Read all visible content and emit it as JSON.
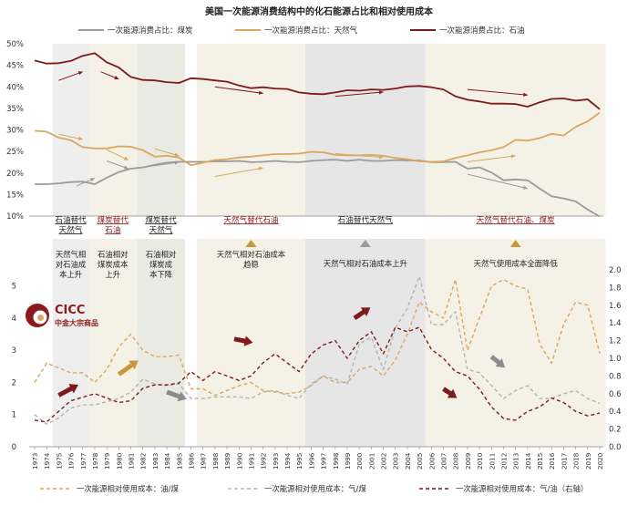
{
  "chart_data": [
    {
      "type": "line",
      "title": "美国一次能源消费结构中的化石能源占比和相对使用成本",
      "y_ticks": [
        "10%",
        "15%",
        "20%",
        "25%",
        "30%",
        "35%",
        "40%",
        "45%",
        "50%"
      ],
      "ylim": [
        10,
        50
      ],
      "legend_position": "top",
      "x": [
        1973,
        1974,
        1975,
        1976,
        1977,
        1978,
        1979,
        1980,
        1981,
        1982,
        1983,
        1984,
        1985,
        1986,
        1987,
        1988,
        1989,
        1990,
        1991,
        1992,
        1993,
        1994,
        1995,
        1996,
        1997,
        1998,
        1999,
        2000,
        2001,
        2002,
        2003,
        2004,
        2005,
        2006,
        2007,
        2008,
        2009,
        2010,
        2011,
        2012,
        2013,
        2014,
        2015,
        2016,
        2017,
        2018,
        2019,
        2020
      ],
      "series": [
        {
          "name": "一次能源消费占比：煤炭",
          "color": "#9a9a9a",
          "values": [
            17.4,
            17.4,
            17.6,
            17.9,
            18.0,
            17.4,
            18.9,
            20.2,
            21.0,
            21.3,
            21.9,
            22.4,
            22.6,
            22.6,
            22.6,
            22.7,
            22.7,
            22.8,
            22.5,
            22.6,
            22.8,
            22.6,
            22.5,
            22.8,
            23.0,
            23.1,
            22.8,
            23.1,
            22.8,
            22.8,
            23.0,
            22.9,
            22.9,
            22.5,
            22.5,
            22.6,
            21.0,
            21.3,
            20.1,
            18.3,
            18.5,
            18.3,
            16.4,
            14.6,
            14.1,
            13.4,
            11.5,
            9.9
          ]
        },
        {
          "name": "一次能源消费占比：天然气",
          "color": "#d9a75f",
          "values": [
            29.8,
            29.6,
            28.2,
            27.6,
            26.0,
            25.7,
            25.7,
            26.2,
            26.1,
            25.3,
            23.8,
            24.0,
            23.6,
            21.8,
            22.4,
            23.0,
            23.2,
            23.6,
            23.8,
            24.1,
            24.4,
            24.4,
            24.5,
            24.9,
            24.8,
            24.2,
            24.1,
            24.1,
            24.2,
            24.0,
            23.5,
            23.2,
            22.7,
            22.6,
            22.7,
            23.5,
            24.1,
            24.8,
            25.3,
            26.0,
            27.7,
            27.5,
            28.1,
            29.1,
            28.7,
            30.7,
            32.0,
            34.0
          ]
        },
        {
          "name": "一次能源消费占比：石油",
          "color": "#7d1a1c",
          "values": [
            46.1,
            45.4,
            45.5,
            46.0,
            47.2,
            47.8,
            45.7,
            44.5,
            42.3,
            41.6,
            41.5,
            41.1,
            40.9,
            42.0,
            41.8,
            41.5,
            41.2,
            40.3,
            39.7,
            39.9,
            39.6,
            39.5,
            38.7,
            38.4,
            38.3,
            38.7,
            39.2,
            39.1,
            39.4,
            39.3,
            39.6,
            40.1,
            40.2,
            39.9,
            39.4,
            37.8,
            37.0,
            36.6,
            36.1,
            36.1,
            36.0,
            35.4,
            36.4,
            37.2,
            37.3,
            36.8,
            37.1,
            34.8
          ]
        }
      ]
    },
    {
      "type": "line",
      "y_ticks_left": [
        "0",
        "1",
        "2",
        "3",
        "4",
        "5"
      ],
      "ylim_left": [
        0,
        5.5
      ],
      "y_ticks_right": [
        "0.0",
        "0.2",
        "0.4",
        "0.6",
        "0.8",
        "1.0",
        "1.2",
        "1.4",
        "1.6",
        "1.8",
        "2.0"
      ],
      "ylim_right": [
        0,
        2.0
      ],
      "legend_position": "bottom",
      "x": [
        1973,
        1974,
        1975,
        1976,
        1977,
        1978,
        1979,
        1980,
        1981,
        1982,
        1983,
        1984,
        1985,
        1986,
        1987,
        1988,
        1989,
        1990,
        1991,
        1992,
        1993,
        1994,
        1995,
        1996,
        1997,
        1998,
        1999,
        2000,
        2001,
        2002,
        2003,
        2004,
        2005,
        2006,
        2007,
        2008,
        2009,
        2010,
        2011,
        2012,
        2013,
        2014,
        2015,
        2016,
        2017,
        2018,
        2019,
        2020
      ],
      "series": [
        {
          "name": "一次能源相对使用成本：油/煤",
          "color": "#d9a75f",
          "dash": true,
          "axis": "left",
          "values": [
            2.0,
            2.6,
            2.45,
            2.3,
            2.3,
            2.0,
            2.4,
            3.1,
            3.5,
            3.0,
            2.8,
            2.8,
            2.85,
            1.8,
            1.8,
            1.6,
            1.75,
            1.9,
            2.0,
            1.75,
            1.7,
            1.65,
            1.7,
            1.9,
            2.2,
            2.0,
            2.0,
            2.4,
            2.5,
            2.2,
            2.7,
            3.5,
            4.5,
            4.2,
            4.0,
            5.2,
            3.0,
            4.0,
            5.0,
            5.2,
            5.0,
            4.9,
            3.2,
            2.6,
            3.8,
            4.5,
            4.4,
            2.9
          ]
        },
        {
          "name": "一次能源相对使用成本：气/煤",
          "color": "#b3b3b3",
          "dash": true,
          "axis": "left",
          "values": [
            1.0,
            0.7,
            0.9,
            1.2,
            1.3,
            1.3,
            1.4,
            1.5,
            1.7,
            2.1,
            1.95,
            1.9,
            1.95,
            1.5,
            1.5,
            1.55,
            1.55,
            1.55,
            1.5,
            1.7,
            1.75,
            1.6,
            1.5,
            1.95,
            2.2,
            2.1,
            1.95,
            3.2,
            3.4,
            2.4,
            3.7,
            4.3,
            5.3,
            3.8,
            3.8,
            4.2,
            2.4,
            2.3,
            1.9,
            1.5,
            1.75,
            1.9,
            1.5,
            1.5,
            1.65,
            1.75,
            1.5,
            1.35
          ]
        },
        {
          "name": "一次能源相对使用成本：气/油（右轴）",
          "color": "#7d1a1c",
          "dash": true,
          "axis": "right",
          "values": [
            0.3,
            0.28,
            0.4,
            0.52,
            0.56,
            0.6,
            0.55,
            0.5,
            0.52,
            0.66,
            0.7,
            0.7,
            0.72,
            0.85,
            0.75,
            0.85,
            0.8,
            0.75,
            0.8,
            0.95,
            1.05,
            0.95,
            0.85,
            1.05,
            1.15,
            1.2,
            1.0,
            1.2,
            1.3,
            1.05,
            1.35,
            1.3,
            1.35,
            1.1,
            1.0,
            0.85,
            0.8,
            0.65,
            0.45,
            0.32,
            0.3,
            0.4,
            0.45,
            0.55,
            0.5,
            0.4,
            0.35,
            0.38
          ]
        }
      ]
    }
  ],
  "bands": [
    {
      "from": 1975,
      "to": 1977,
      "color": "#eeeeee"
    },
    {
      "from": 1978,
      "to": 1981,
      "color": "#f4f1e6"
    },
    {
      "from": 1982,
      "to": 1985,
      "color": "#e9ebe3"
    },
    {
      "from": 1987,
      "to": 1995,
      "color": "#f4f1e6"
    },
    {
      "from": 1996,
      "to": 2005,
      "color": "#e6e6e6"
    },
    {
      "from": 2006,
      "to": 2020,
      "color": "#f4f1e6"
    }
  ],
  "phases": [
    {
      "label": "石油替代天然气",
      "center": 1976,
      "color": "#222222",
      "underline": true,
      "marker": "none"
    },
    {
      "label": "煤炭替代石油",
      "center": 1979.5,
      "color": "#8b1a1a",
      "underline": true,
      "marker": "none"
    },
    {
      "label": "煤炭替代天然气",
      "center": 1983.5,
      "color": "#222222",
      "underline": true,
      "marker": "none"
    },
    {
      "label": "天然气替代石油",
      "center": 1991,
      "color": "#8b1a1a",
      "underline": true,
      "marker": "gold"
    },
    {
      "label": "石油替代天然气",
      "center": 2000.5,
      "color": "#222222",
      "underline": true,
      "marker": "gray"
    },
    {
      "label": "天然气替代石油、煤炭",
      "center": 2013,
      "color": "#8b1a1a",
      "underline": true,
      "marker": "gold"
    }
  ],
  "phase_notes": [
    {
      "lines": [
        "天然气相",
        "对石油成",
        "本上升"
      ],
      "center": 1976
    },
    {
      "lines": [
        "石油相对",
        "煤炭成本",
        "上升"
      ],
      "center": 1979.5
    },
    {
      "lines": [
        "石油相对",
        "煤炭成",
        "本下降"
      ],
      "center": 1983.5
    },
    {
      "lines": [
        "天然气相对石油成本",
        "趋稳"
      ],
      "center": 1991
    },
    {
      "lines": [
        "天然气相对石油成本上升"
      ],
      "center": 2000.5
    },
    {
      "lines": [
        "天然气使用成本全面降低"
      ],
      "center": 2013
    }
  ],
  "logo": {
    "name": "CICC",
    "subtitle": "中金大宗商品",
    "color": "#8b1a1a"
  }
}
